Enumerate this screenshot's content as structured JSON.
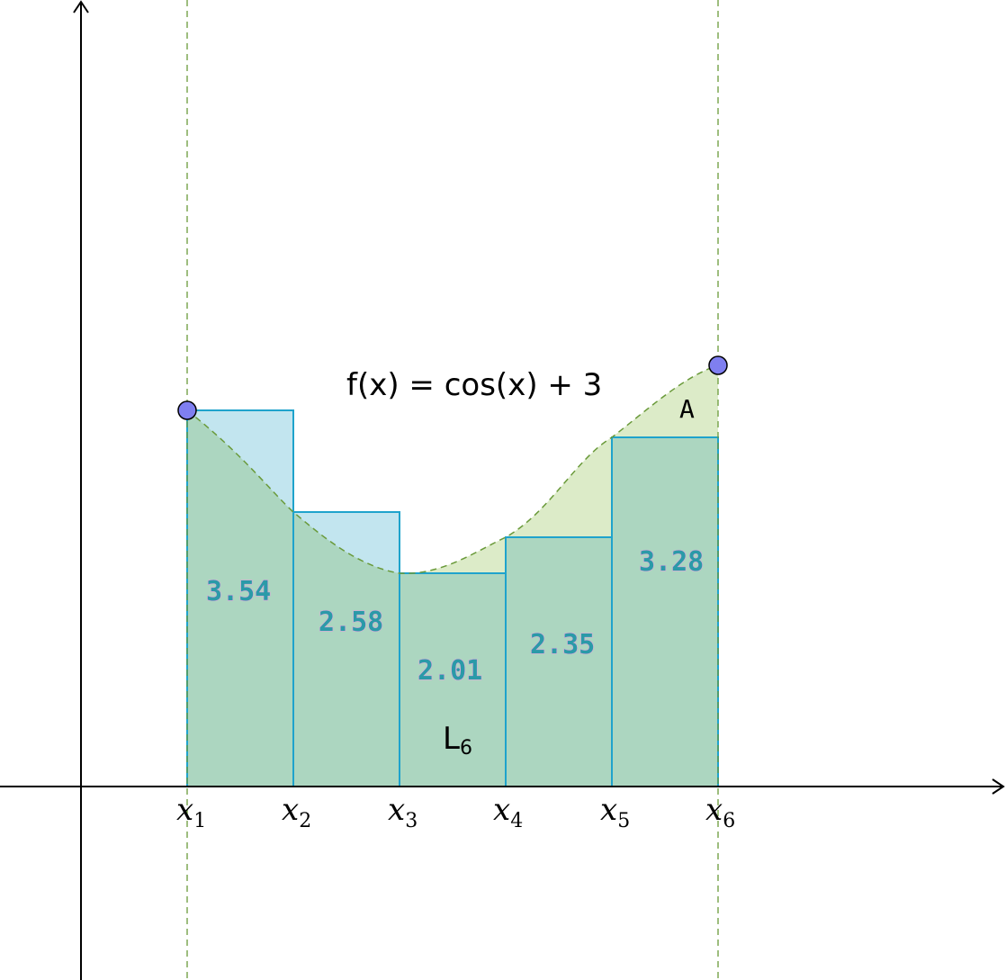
{
  "function_label": "f(x) = cos(x) + 3",
  "area_label": "A",
  "sum_label": {
    "main": "L",
    "sub": "6"
  },
  "x_ticks": [
    {
      "var": "x",
      "sub": "1"
    },
    {
      "var": "x",
      "sub": "2"
    },
    {
      "var": "x",
      "sub": "3"
    },
    {
      "var": "x",
      "sub": "4"
    },
    {
      "var": "x",
      "sub": "5"
    },
    {
      "var": "x",
      "sub": "6"
    }
  ],
  "rect_values": [
    "3.54",
    "2.58",
    "2.01",
    "2.35",
    "3.28"
  ],
  "colors": {
    "rect_stroke": "#1fa3cc",
    "rect_fill_light": "#c2e5ef",
    "area_fill": "#dcebc8",
    "overlap_fill": "#acd6c0",
    "curve_stroke": "#6a9a3a",
    "point_fill": "#7f7ff0",
    "axis": "#000000"
  }
}
